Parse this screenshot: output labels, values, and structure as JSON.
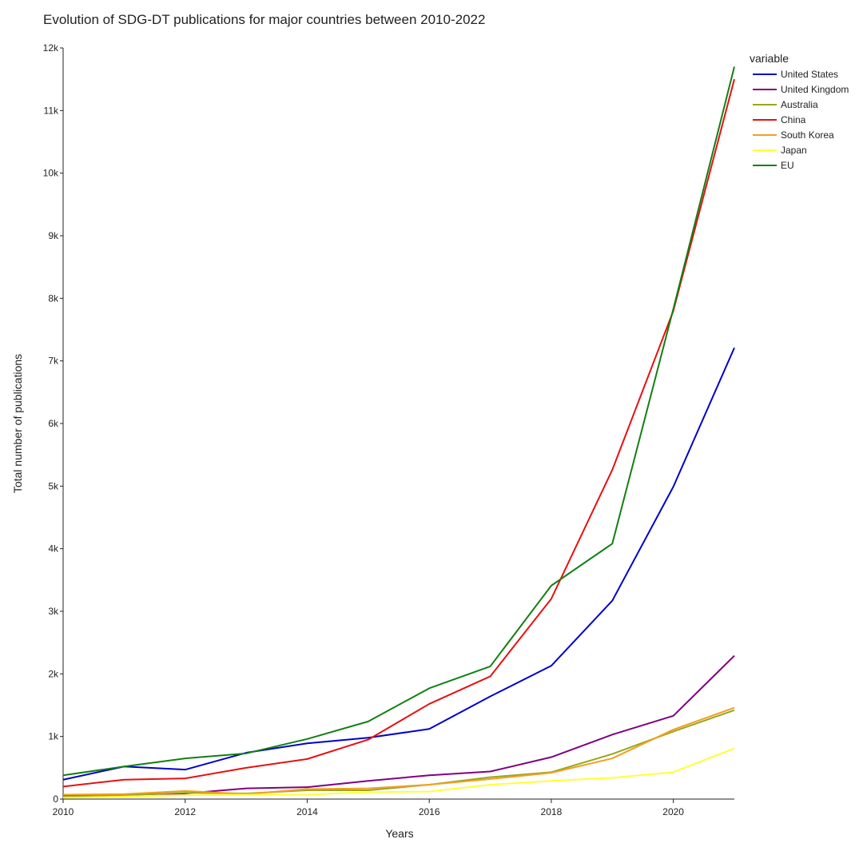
{
  "chart_data": {
    "type": "line",
    "title": "Evolution of SDG-DT publications for major countries between 2010-2022",
    "xlabel": "Years",
    "ylabel": "Total number of publications",
    "x": [
      2010,
      2011,
      2012,
      2013,
      2014,
      2015,
      2016,
      2017,
      2018,
      2019,
      2020,
      2021
    ],
    "xlim": [
      2010,
      2021
    ],
    "ylim": [
      0,
      12000
    ],
    "x_ticks": [
      "2010",
      "2012",
      "2014",
      "2016",
      "2018",
      "2020"
    ],
    "y_ticks": [
      "0",
      "1k",
      "2k",
      "3k",
      "4k",
      "5k",
      "6k",
      "7k",
      "8k",
      "9k",
      "10k",
      "11k",
      "12k"
    ],
    "legend_title": "variable",
    "legend_position": "top-right",
    "grid": false,
    "series": [
      {
        "name": "United States",
        "color": "#0000cd",
        "values": [
          310,
          520,
          470,
          740,
          890,
          980,
          1120,
          1640,
          2130,
          3170,
          4990,
          7210
        ]
      },
      {
        "name": "United Kingdom",
        "color": "#800080",
        "values": [
          60,
          70,
          90,
          170,
          190,
          290,
          380,
          440,
          670,
          1030,
          1330,
          2290
        ]
      },
      {
        "name": "Australia",
        "color": "#9aa61e",
        "values": [
          40,
          60,
          100,
          90,
          140,
          140,
          230,
          350,
          430,
          720,
          1080,
          1420
        ]
      },
      {
        "name": "China",
        "color": "#e81010",
        "values": [
          200,
          310,
          330,
          500,
          640,
          950,
          1520,
          1960,
          3200,
          5260,
          7800,
          11500
        ]
      },
      {
        "name": "South Korea",
        "color": "#f0a020",
        "values": [
          70,
          80,
          130,
          80,
          160,
          170,
          230,
          320,
          420,
          650,
          1110,
          1460
        ]
      },
      {
        "name": "Japan",
        "color": "#ffff33",
        "values": [
          20,
          40,
          60,
          70,
          70,
          110,
          120,
          230,
          290,
          340,
          430,
          810
        ]
      },
      {
        "name": "EU",
        "color": "#128012",
        "values": [
          380,
          520,
          650,
          730,
          960,
          1240,
          1770,
          2120,
          3410,
          4080,
          7830,
          11700
        ]
      }
    ]
  }
}
